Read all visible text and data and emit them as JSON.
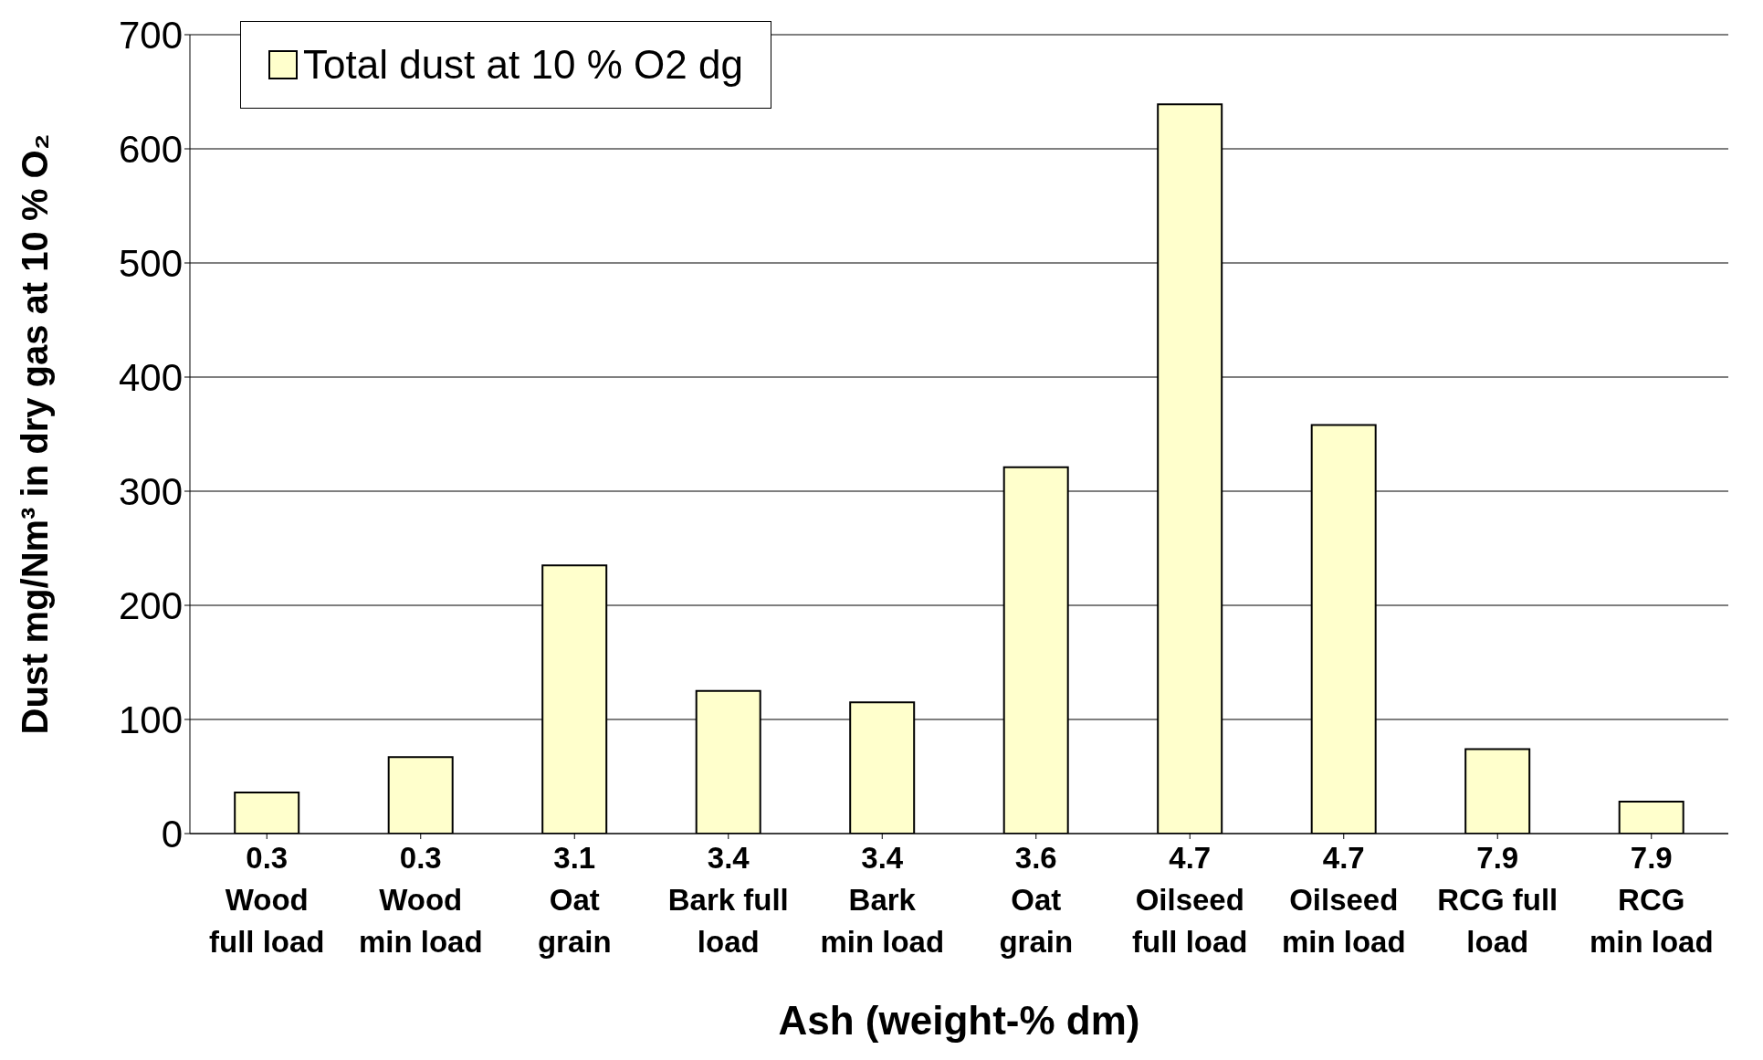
{
  "chart_data": {
    "type": "bar",
    "xlabel": "Ash (weight-% dm)",
    "ylabel": "Dust mg/Nm³ in dry gas at 10 % O₂",
    "categories": [
      "0.3\nWood\nfull load",
      "0.3\nWood\nmin load",
      "3.1\nOat\ngrain",
      "3.4\nBark full\nload",
      "3.4\nBark\nmin load",
      "3.6\nOat\ngrain",
      "4.7\nOilseed\nfull load",
      "4.7\nOilseed\nmin load",
      "7.9\nRCG full\nload",
      "7.9\nRCG\nmin load"
    ],
    "series": [
      {
        "name": "Total dust at 10 % O2 dg",
        "color": "#ffffcc",
        "values": [
          36,
          67,
          235,
          125,
          115,
          321,
          639,
          358,
          74,
          28
        ]
      }
    ],
    "ylim": [
      0,
      700
    ],
    "yticks": [
      0,
      100,
      200,
      300,
      400,
      500,
      600,
      700
    ],
    "grid": "y",
    "legend": "top left"
  }
}
